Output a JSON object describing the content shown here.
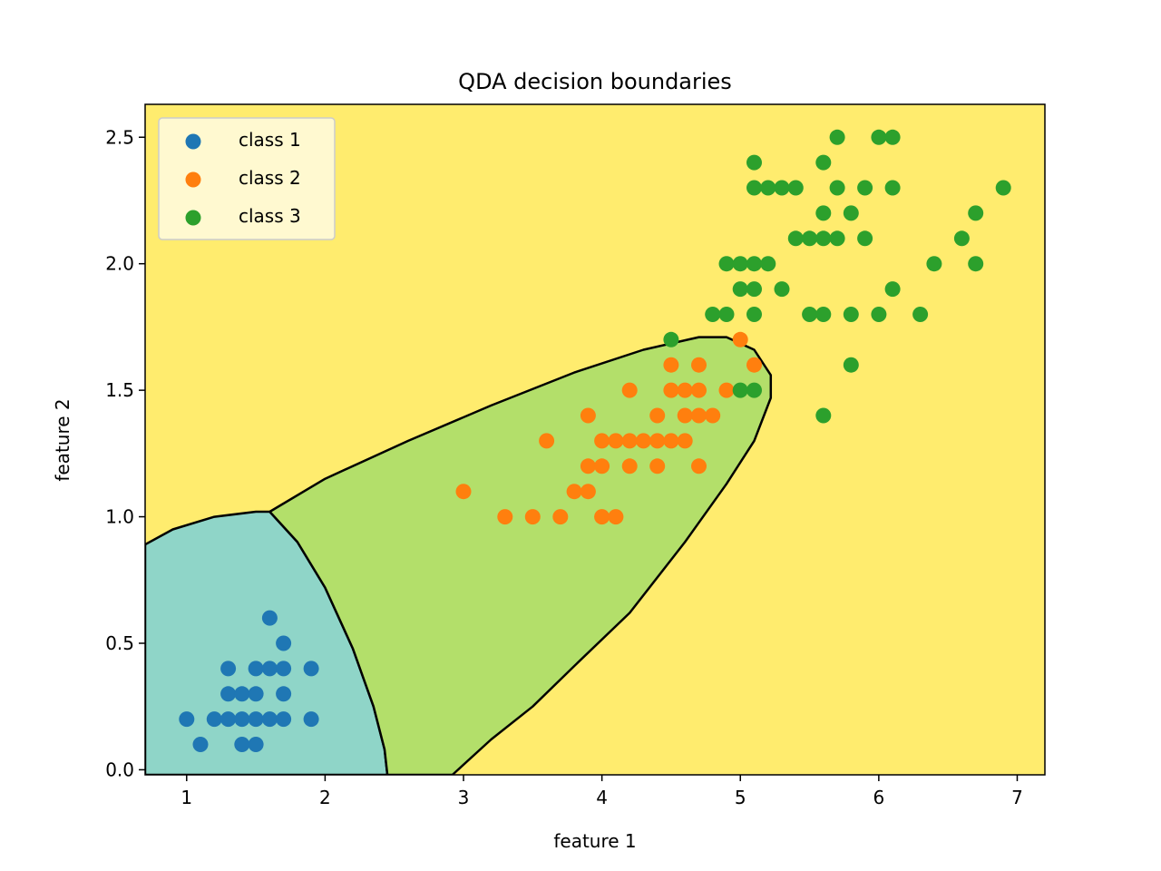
{
  "chart_data": {
    "type": "scatter",
    "title": "QDA decision boundaries",
    "xlabel": "feature 1",
    "ylabel": "feature 2",
    "xlim": [
      0.7,
      7.2
    ],
    "ylim": [
      -0.02,
      2.63
    ],
    "xticks": [
      1,
      2,
      3,
      4,
      5,
      6,
      7
    ],
    "xtick_labels": [
      "1",
      "2",
      "3",
      "4",
      "5",
      "6",
      "7"
    ],
    "yticks": [
      0.0,
      0.5,
      1.0,
      1.5,
      2.0,
      2.5
    ],
    "ytick_labels": [
      "0.0",
      "0.5",
      "1.0",
      "1.5",
      "2.0",
      "2.5"
    ],
    "grid": false,
    "legend_position": "top-left",
    "background_color": "#ffec6e",
    "region_colors": {
      "class 1": "#8fd5c8",
      "class 2": "#b3df6a",
      "class 3": "#ffec6e"
    },
    "regions": {
      "class 1": [
        [
          0.7,
          0.89
        ],
        [
          0.9,
          0.95
        ],
        [
          1.2,
          1.0
        ],
        [
          1.5,
          1.02
        ],
        [
          1.6,
          1.02
        ],
        [
          1.8,
          0.9
        ],
        [
          2.0,
          0.72
        ],
        [
          2.2,
          0.48
        ],
        [
          2.35,
          0.25
        ],
        [
          2.43,
          0.08
        ],
        [
          2.45,
          -0.02
        ],
        [
          0.7,
          -0.02
        ]
      ],
      "class 2": [
        [
          1.6,
          1.02
        ],
        [
          2.0,
          1.15
        ],
        [
          2.6,
          1.3
        ],
        [
          3.2,
          1.44
        ],
        [
          3.8,
          1.57
        ],
        [
          4.3,
          1.66
        ],
        [
          4.7,
          1.71
        ],
        [
          4.9,
          1.71
        ],
        [
          5.1,
          1.66
        ],
        [
          5.22,
          1.56
        ],
        [
          5.22,
          1.47
        ],
        [
          5.1,
          1.3
        ],
        [
          4.9,
          1.13
        ],
        [
          4.6,
          0.9
        ],
        [
          4.2,
          0.62
        ],
        [
          3.8,
          0.41
        ],
        [
          3.5,
          0.25
        ],
        [
          3.2,
          0.12
        ],
        [
          2.92,
          -0.02
        ],
        [
          2.45,
          -0.02
        ],
        [
          2.43,
          0.08
        ],
        [
          2.35,
          0.25
        ],
        [
          2.2,
          0.48
        ],
        [
          2.0,
          0.72
        ],
        [
          1.8,
          0.9
        ]
      ]
    },
    "series": [
      {
        "name": "class 1",
        "color": "#1f77b4",
        "points": [
          [
            1.0,
            0.2
          ],
          [
            1.1,
            0.1
          ],
          [
            1.2,
            0.2
          ],
          [
            1.3,
            0.2
          ],
          [
            1.3,
            0.3
          ],
          [
            1.3,
            0.4
          ],
          [
            1.4,
            0.1
          ],
          [
            1.4,
            0.2
          ],
          [
            1.4,
            0.3
          ],
          [
            1.5,
            0.1
          ],
          [
            1.5,
            0.2
          ],
          [
            1.5,
            0.3
          ],
          [
            1.5,
            0.4
          ],
          [
            1.6,
            0.2
          ],
          [
            1.6,
            0.4
          ],
          [
            1.6,
            0.6
          ],
          [
            1.7,
            0.2
          ],
          [
            1.7,
            0.3
          ],
          [
            1.7,
            0.4
          ],
          [
            1.7,
            0.5
          ],
          [
            1.9,
            0.2
          ],
          [
            1.9,
            0.4
          ]
        ]
      },
      {
        "name": "class 2",
        "color": "#ff7f0e",
        "points": [
          [
            3.0,
            1.1
          ],
          [
            3.3,
            1.0
          ],
          [
            3.5,
            1.0
          ],
          [
            3.6,
            1.3
          ],
          [
            3.7,
            1.0
          ],
          [
            3.8,
            1.1
          ],
          [
            3.9,
            1.1
          ],
          [
            3.9,
            1.2
          ],
          [
            3.9,
            1.4
          ],
          [
            4.0,
            1.0
          ],
          [
            4.0,
            1.2
          ],
          [
            4.0,
            1.3
          ],
          [
            4.1,
            1.0
          ],
          [
            4.1,
            1.3
          ],
          [
            4.2,
            1.2
          ],
          [
            4.2,
            1.3
          ],
          [
            4.2,
            1.5
          ],
          [
            4.3,
            1.3
          ],
          [
            4.4,
            1.2
          ],
          [
            4.4,
            1.3
          ],
          [
            4.4,
            1.4
          ],
          [
            4.5,
            1.3
          ],
          [
            4.5,
            1.5
          ],
          [
            4.5,
            1.6
          ],
          [
            4.6,
            1.3
          ],
          [
            4.6,
            1.4
          ],
          [
            4.6,
            1.5
          ],
          [
            4.7,
            1.2
          ],
          [
            4.7,
            1.4
          ],
          [
            4.7,
            1.5
          ],
          [
            4.7,
            1.6
          ],
          [
            4.8,
            1.4
          ],
          [
            4.9,
            1.5
          ],
          [
            5.0,
            1.7
          ],
          [
            5.1,
            1.6
          ]
        ]
      },
      {
        "name": "class 3",
        "color": "#2ca02c",
        "points": [
          [
            4.5,
            1.7
          ],
          [
            4.8,
            1.8
          ],
          [
            4.9,
            1.8
          ],
          [
            4.9,
            2.0
          ],
          [
            5.0,
            1.5
          ],
          [
            5.0,
            1.9
          ],
          [
            5.0,
            2.0
          ],
          [
            5.1,
            1.5
          ],
          [
            5.1,
            1.8
          ],
          [
            5.1,
            1.9
          ],
          [
            5.1,
            2.0
          ],
          [
            5.1,
            2.3
          ],
          [
            5.1,
            2.4
          ],
          [
            5.2,
            2.0
          ],
          [
            5.2,
            2.3
          ],
          [
            5.3,
            1.9
          ],
          [
            5.3,
            2.3
          ],
          [
            5.4,
            2.1
          ],
          [
            5.4,
            2.3
          ],
          [
            5.5,
            1.8
          ],
          [
            5.5,
            2.1
          ],
          [
            5.6,
            1.4
          ],
          [
            5.6,
            1.8
          ],
          [
            5.6,
            2.1
          ],
          [
            5.6,
            2.2
          ],
          [
            5.6,
            2.4
          ],
          [
            5.7,
            2.1
          ],
          [
            5.7,
            2.3
          ],
          [
            5.7,
            2.5
          ],
          [
            5.8,
            1.6
          ],
          [
            5.8,
            1.8
          ],
          [
            5.8,
            2.2
          ],
          [
            5.9,
            2.1
          ],
          [
            5.9,
            2.3
          ],
          [
            6.0,
            1.8
          ],
          [
            6.0,
            2.5
          ],
          [
            6.1,
            1.9
          ],
          [
            6.1,
            2.3
          ],
          [
            6.1,
            2.5
          ],
          [
            6.3,
            1.8
          ],
          [
            6.4,
            2.0
          ],
          [
            6.6,
            2.1
          ],
          [
            6.7,
            2.0
          ],
          [
            6.7,
            2.2
          ],
          [
            6.9,
            2.3
          ]
        ]
      }
    ]
  }
}
